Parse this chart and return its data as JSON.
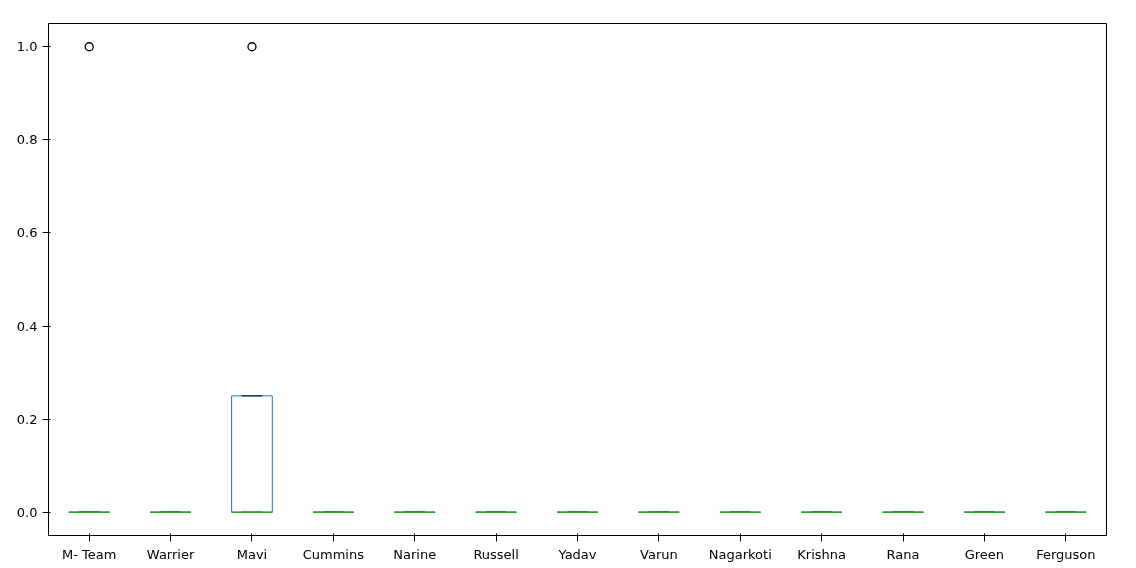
{
  "chart_data": {
    "type": "box",
    "categories": [
      "M- Team",
      "Warrier",
      "Mavi",
      "Cummins",
      "Narine",
      "Russell",
      "Yadav",
      "Varun",
      "Nagarkoti",
      "Krishna",
      "Rana",
      "Green",
      "Ferguson"
    ],
    "boxes": [
      {
        "low": 0,
        "q1": 0,
        "median": 0,
        "q3": 0,
        "high": 0,
        "outliers": [
          1.0
        ]
      },
      {
        "low": 0,
        "q1": 0,
        "median": 0,
        "q3": 0,
        "high": 0
      },
      {
        "low": 0,
        "q1": 0,
        "median": 0,
        "q3": 0.25,
        "high": 0.25,
        "outliers": [
          1.0
        ]
      },
      {
        "low": 0,
        "q1": 0,
        "median": 0,
        "q3": 0,
        "high": 0
      },
      {
        "low": 0,
        "q1": 0,
        "median": 0,
        "q3": 0,
        "high": 0
      },
      {
        "low": 0,
        "q1": 0,
        "median": 0,
        "q3": 0,
        "high": 0
      },
      {
        "low": 0,
        "q1": 0,
        "median": 0,
        "q3": 0,
        "high": 0
      },
      {
        "low": 0,
        "q1": 0,
        "median": 0,
        "q3": 0,
        "high": 0
      },
      {
        "low": 0,
        "q1": 0,
        "median": 0,
        "q3": 0,
        "high": 0
      },
      {
        "low": 0,
        "q1": 0,
        "median": 0,
        "q3": 0,
        "high": 0
      },
      {
        "low": 0,
        "q1": 0,
        "median": 0,
        "q3": 0,
        "high": 0
      },
      {
        "low": 0,
        "q1": 0,
        "median": 0,
        "q3": 0,
        "high": 0
      },
      {
        "low": 0,
        "q1": 0,
        "median": 0,
        "q3": 0,
        "high": 0
      }
    ],
    "color": "#1f77b4",
    "ylim": [
      -0.05,
      1.05
    ],
    "yticks": [
      {
        "value": 0,
        "label": "0.0"
      },
      {
        "value": 0.2,
        "label": "0.2"
      },
      {
        "value": 0.4,
        "label": "0.4"
      },
      {
        "value": 0.6,
        "label": "0.6"
      },
      {
        "value": 0.8,
        "label": "0.8"
      },
      {
        "value": 1.0,
        "label": "1.0"
      }
    ],
    "grid": false
  }
}
